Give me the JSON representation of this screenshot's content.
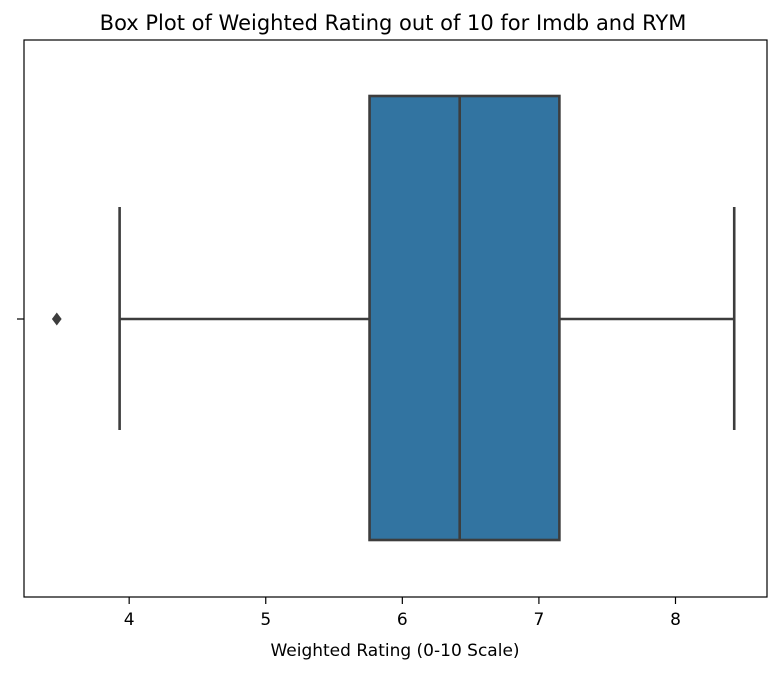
{
  "chart_data": {
    "type": "box",
    "title": "Box Plot of Weighted Rating out of 10 for Imdb and RYM",
    "xlabel": "Weighted Rating (0-10 Scale)",
    "ylabel": "",
    "xlim": [
      3.23,
      8.67
    ],
    "xticks": [
      4,
      5,
      6,
      7,
      8
    ],
    "xtick_labels": [
      "4",
      "5",
      "6",
      "7",
      "8"
    ],
    "grid": false,
    "orientation": "horizontal",
    "box": {
      "whisker_low": 3.93,
      "q1": 5.76,
      "median": 6.42,
      "q3": 7.15,
      "whisker_high": 8.43,
      "outliers": [
        3.47
      ]
    },
    "colors": {
      "box_fill": "#3274a1",
      "line": "#3d3d3d",
      "axis": "#000000"
    }
  }
}
